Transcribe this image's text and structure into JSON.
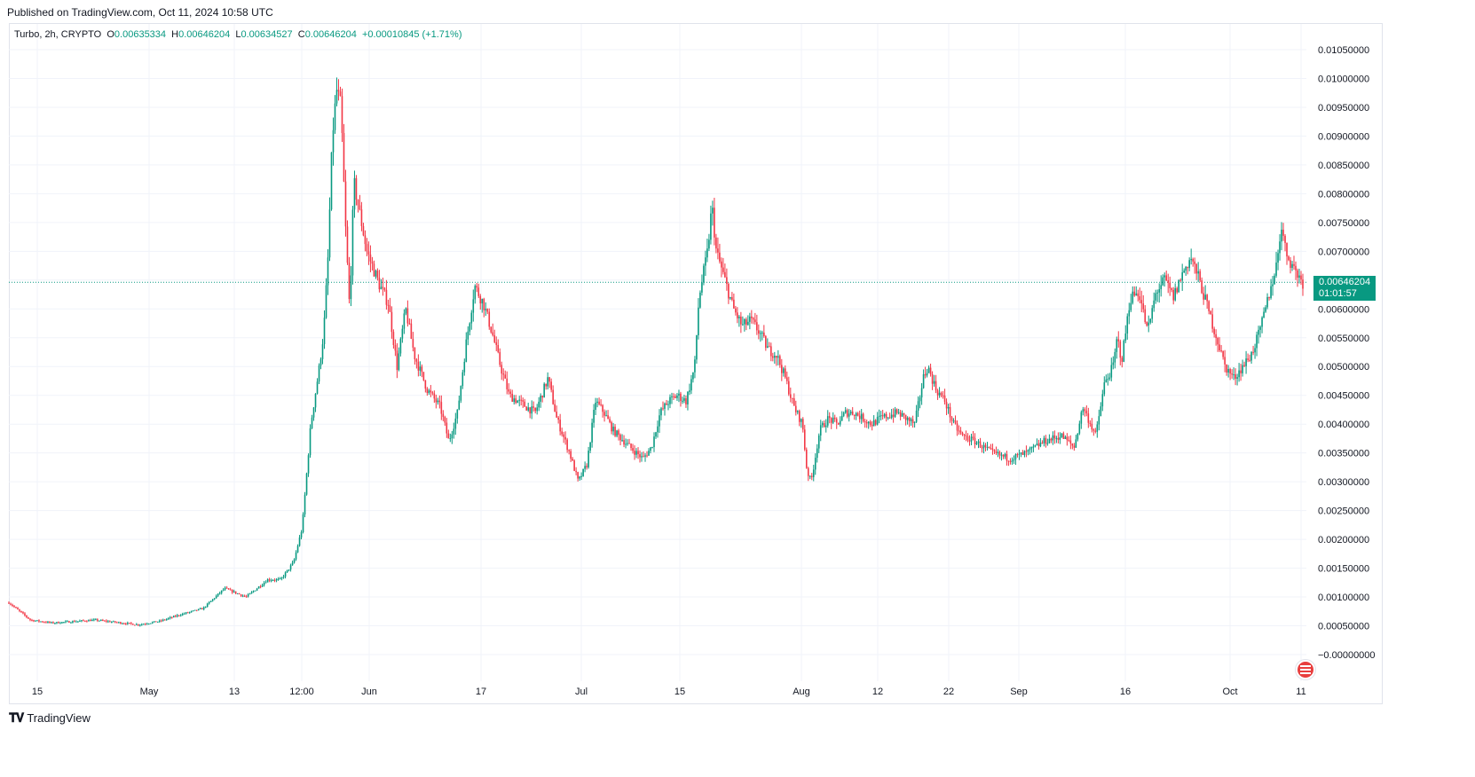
{
  "header": {
    "published": "Published on TradingView.com, Oct 11, 2024 10:58 UTC"
  },
  "legend": {
    "symbol": "Turbo, 2h, CRYPTO",
    "o_label": "O",
    "o_value": "0.00635334",
    "h_label": "H",
    "h_value": "0.00646204",
    "l_label": "L",
    "l_value": "0.00634527",
    "c_label": "C",
    "c_value": "0.00646204",
    "change": "+0.00010845 (+1.71%)"
  },
  "price_badge": {
    "price": "0.00646204",
    "countdown": "01:01:57"
  },
  "footer": {
    "brand": "TradingView",
    "logo": "tradingview-logo-icon"
  },
  "colors": {
    "up": "#089981",
    "down": "#f23645",
    "grid": "#f0f3fa",
    "last_price_line": "#089981"
  },
  "chart_data": {
    "type": "candlestick",
    "title": "Turbo, 2h, CRYPTO",
    "ylim": [
      -5e-05,
      0.0107
    ],
    "y_ticks": [
      "0.01050000",
      "0.01000000",
      "0.00950000",
      "0.00900000",
      "0.00850000",
      "0.00800000",
      "0.00750000",
      "0.00700000",
      "0.00650000",
      "0.00600000",
      "0.00550000",
      "0.00500000",
      "0.00450000",
      "0.00400000",
      "0.00350000",
      "0.00300000",
      "0.00250000",
      "0.00200000",
      "0.00150000",
      "0.00100000",
      "0.00050000",
      "−0.00000000"
    ],
    "x_ticks": [
      "15",
      "May",
      "13",
      "12:00",
      "Jun",
      "17",
      "Jul",
      "15",
      "Aug",
      "12",
      "22",
      "Sep",
      "16",
      "Oct",
      "11"
    ],
    "last_price": 0.00646204,
    "close_path": [
      [
        0,
        0.0009
      ],
      [
        5,
        0.0006
      ],
      [
        10,
        0.00055
      ],
      [
        20,
        0.0006
      ],
      [
        30,
        0.00052
      ],
      [
        35,
        0.00058
      ],
      [
        40,
        0.0007
      ],
      [
        45,
        0.0008
      ],
      [
        50,
        0.00115
      ],
      [
        55,
        0.001
      ],
      [
        60,
        0.0013
      ],
      [
        63,
        0.0013
      ],
      [
        66,
        0.0016
      ],
      [
        68,
        0.0022
      ],
      [
        70,
        0.004
      ],
      [
        71,
        0.0045
      ],
      [
        72,
        0.005
      ],
      [
        73,
        0.0056
      ],
      [
        74,
        0.0069
      ],
      [
        75,
        0.009
      ],
      [
        76,
        0.0098
      ],
      [
        77,
        0.0095
      ],
      [
        78,
        0.0075
      ],
      [
        79,
        0.006
      ],
      [
        80,
        0.0082
      ],
      [
        81,
        0.0078
      ],
      [
        83,
        0.007
      ],
      [
        86,
        0.0064
      ],
      [
        88,
        0.0061
      ],
      [
        90,
        0.005
      ],
      [
        92,
        0.006
      ],
      [
        94,
        0.0052
      ],
      [
        97,
        0.0046
      ],
      [
        100,
        0.0043
      ],
      [
        102,
        0.0037
      ],
      [
        104,
        0.0042
      ],
      [
        106,
        0.0054
      ],
      [
        108,
        0.0064
      ],
      [
        110,
        0.0061
      ],
      [
        112,
        0.0056
      ],
      [
        114,
        0.005
      ],
      [
        116,
        0.0045
      ],
      [
        120,
        0.0043
      ],
      [
        122,
        0.0042
      ],
      [
        125,
        0.0048
      ],
      [
        127,
        0.0041
      ],
      [
        130,
        0.0035
      ],
      [
        132,
        0.003
      ],
      [
        134,
        0.0033
      ],
      [
        136,
        0.0044
      ],
      [
        138,
        0.0042
      ],
      [
        140,
        0.0039
      ],
      [
        144,
        0.0036
      ],
      [
        147,
        0.0034
      ],
      [
        149,
        0.0036
      ],
      [
        151,
        0.0042
      ],
      [
        153,
        0.0044
      ],
      [
        155,
        0.0045
      ],
      [
        157,
        0.0044
      ],
      [
        159,
        0.005
      ],
      [
        160,
        0.0062
      ],
      [
        162,
        0.007
      ],
      [
        163,
        0.0078
      ],
      [
        164,
        0.007
      ],
      [
        166,
        0.0065
      ],
      [
        168,
        0.006
      ],
      [
        170,
        0.0057
      ],
      [
        172,
        0.0058
      ],
      [
        174,
        0.0056
      ],
      [
        176,
        0.0053
      ],
      [
        178,
        0.0052
      ],
      [
        180,
        0.0048
      ],
      [
        182,
        0.0043
      ],
      [
        184,
        0.004
      ],
      [
        185,
        0.0032
      ],
      [
        186,
        0.003
      ],
      [
        188,
        0.0039
      ],
      [
        190,
        0.0041
      ],
      [
        192,
        0.004
      ],
      [
        194,
        0.0042
      ],
      [
        196,
        0.0042
      ],
      [
        198,
        0.0041
      ],
      [
        200,
        0.004
      ],
      [
        202,
        0.0041
      ],
      [
        206,
        0.0042
      ],
      [
        208,
        0.0041
      ],
      [
        210,
        0.004
      ],
      [
        212,
        0.0048
      ],
      [
        213,
        0.005
      ],
      [
        215,
        0.0046
      ],
      [
        217,
        0.0044
      ],
      [
        219,
        0.004
      ],
      [
        221,
        0.0038
      ],
      [
        224,
        0.0037
      ],
      [
        228,
        0.0035
      ],
      [
        232,
        0.0034
      ],
      [
        236,
        0.0035
      ],
      [
        240,
        0.0037
      ],
      [
        244,
        0.0038
      ],
      [
        247,
        0.0036
      ],
      [
        249,
        0.0043
      ],
      [
        252,
        0.0038
      ],
      [
        254,
        0.0047
      ],
      [
        256,
        0.005
      ],
      [
        257,
        0.0055
      ],
      [
        258,
        0.0051
      ],
      [
        260,
        0.0062
      ],
      [
        262,
        0.0063
      ],
      [
        264,
        0.0056
      ],
      [
        266,
        0.0063
      ],
      [
        268,
        0.0065
      ],
      [
        270,
        0.0062
      ],
      [
        272,
        0.0066
      ],
      [
        274,
        0.0069
      ],
      [
        276,
        0.0065
      ],
      [
        278,
        0.006
      ],
      [
        280,
        0.0055
      ],
      [
        282,
        0.005
      ],
      [
        284,
        0.0048
      ],
      [
        286,
        0.005
      ],
      [
        288,
        0.0052
      ],
      [
        290,
        0.0056
      ],
      [
        292,
        0.0062
      ],
      [
        294,
        0.0068
      ],
      [
        295,
        0.0075
      ],
      [
        296,
        0.007
      ],
      [
        298,
        0.0067
      ],
      [
        300,
        0.00646
      ]
    ]
  }
}
